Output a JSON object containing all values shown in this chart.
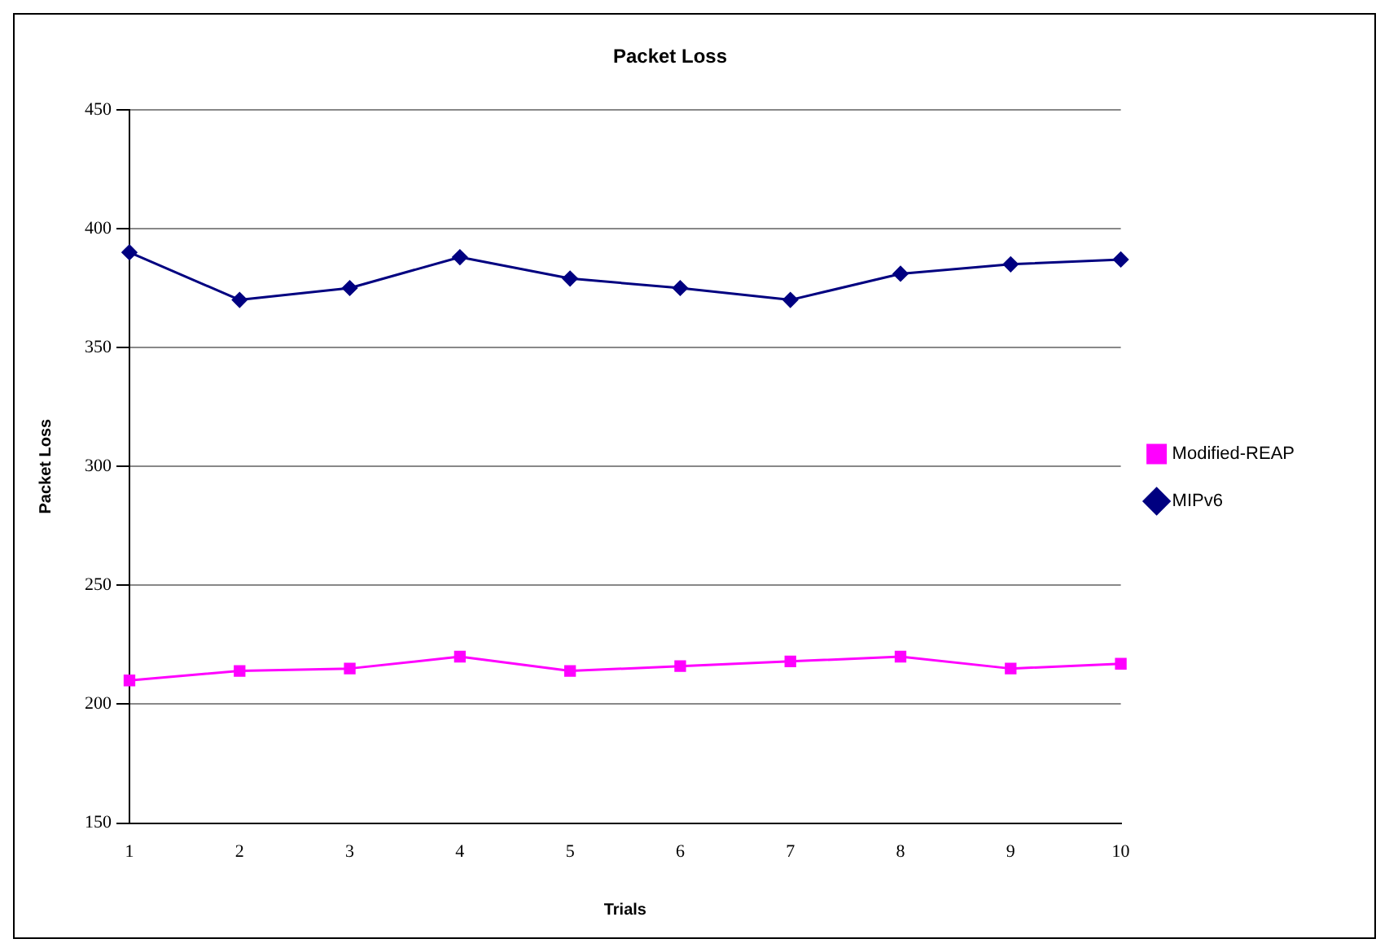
{
  "chart_data": {
    "type": "line",
    "title": "Packet Loss",
    "xlabel": "Trials",
    "ylabel": "Packet Loss",
    "categories": [
      "1",
      "2",
      "3",
      "4",
      "5",
      "6",
      "7",
      "8",
      "9",
      "10"
    ],
    "series": [
      {
        "name": "Modified-REAP",
        "color": "#ff00ff",
        "marker": "square",
        "values": [
          210,
          214,
          215,
          220,
          214,
          216,
          218,
          220,
          215,
          217
        ]
      },
      {
        "name": "MIPv6",
        "color": "#000080",
        "marker": "diamond",
        "values": [
          390,
          370,
          375,
          388,
          379,
          375,
          370,
          381,
          385,
          387
        ]
      }
    ],
    "ylim": [
      150,
      450
    ],
    "yticks": [
      150,
      200,
      250,
      300,
      350,
      400,
      450
    ],
    "grid": "y",
    "legend": "right",
    "line_style": "solid"
  }
}
